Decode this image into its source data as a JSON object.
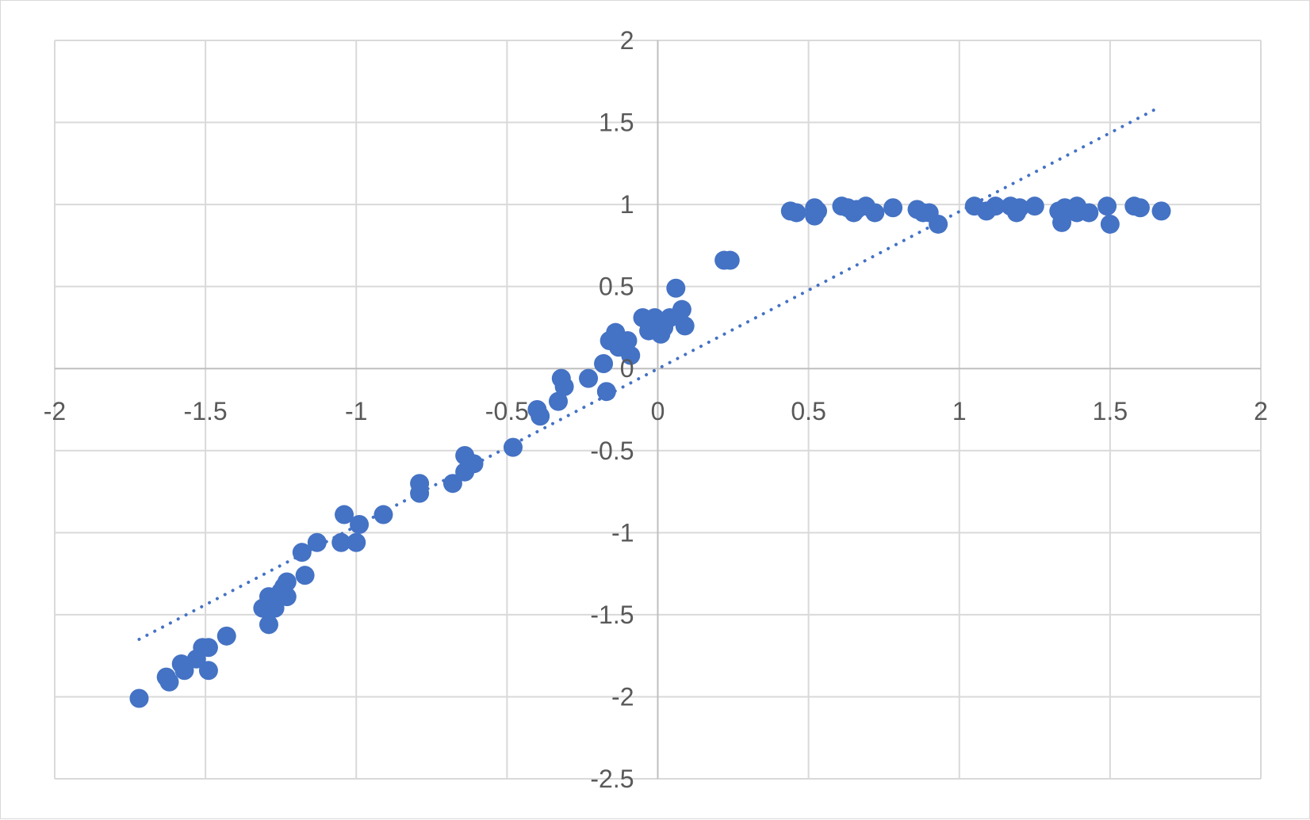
{
  "chart_data": {
    "type": "scatter",
    "title": "",
    "xlabel": "",
    "ylabel": "",
    "xlim": [
      -2,
      2
    ],
    "ylim": [
      -2.5,
      2
    ],
    "x_ticks": [
      -2,
      -1.5,
      -1,
      -0.5,
      0,
      0.5,
      1,
      1.5,
      2
    ],
    "y_ticks": [
      -2.5,
      -2,
      -1.5,
      -1,
      -0.5,
      0,
      0.5,
      1,
      1.5,
      2
    ],
    "x_tick_labels": [
      "-2",
      "-1.5",
      "-1",
      "-0.5",
      "0",
      "0.5",
      "1",
      "1.5",
      "2"
    ],
    "y_tick_labels": [
      "-2.5",
      "-2",
      "-1.5",
      "-1",
      "-0.5",
      "0",
      "0.5",
      "1",
      "1.5",
      "2"
    ],
    "grid": true,
    "legend": "none",
    "colors": {
      "marker": "#4472C4",
      "trendline": "#4472C4",
      "grid": "#d9d9d9",
      "axis": "#bfbfbf",
      "text": "#595959"
    },
    "trendline": {
      "style": "dotted",
      "x": [
        -1.72,
        1.65
      ],
      "y": [
        -1.65,
        1.58
      ]
    },
    "series": [
      {
        "points": [
          [
            -1.72,
            -2.01
          ],
          [
            -1.63,
            -1.88
          ],
          [
            -1.62,
            -1.91
          ],
          [
            -1.58,
            -1.8
          ],
          [
            -1.57,
            -1.84
          ],
          [
            -1.53,
            -1.77
          ],
          [
            -1.51,
            -1.7
          ],
          [
            -1.49,
            -1.7
          ],
          [
            -1.49,
            -1.84
          ],
          [
            -1.43,
            -1.63
          ],
          [
            -1.31,
            -1.46
          ],
          [
            -1.29,
            -1.39
          ],
          [
            -1.29,
            -1.56
          ],
          [
            -1.28,
            -1.43
          ],
          [
            -1.27,
            -1.46
          ],
          [
            -1.25,
            -1.36
          ],
          [
            -1.24,
            -1.33
          ],
          [
            -1.23,
            -1.3
          ],
          [
            -1.23,
            -1.39
          ],
          [
            -1.17,
            -1.26
          ],
          [
            -1.18,
            -1.12
          ],
          [
            -1.13,
            -1.06
          ],
          [
            -1.05,
            -1.06
          ],
          [
            -1.04,
            -0.89
          ],
          [
            -1.0,
            -1.06
          ],
          [
            -0.99,
            -0.95
          ],
          [
            -0.91,
            -0.89
          ],
          [
            -0.79,
            -0.7
          ],
          [
            -0.79,
            -0.76
          ],
          [
            -0.68,
            -0.7
          ],
          [
            -0.64,
            -0.53
          ],
          [
            -0.64,
            -0.63
          ],
          [
            -0.61,
            -0.58
          ],
          [
            -0.48,
            -0.48
          ],
          [
            -0.4,
            -0.25
          ],
          [
            -0.39,
            -0.29
          ],
          [
            -0.33,
            -0.2
          ],
          [
            -0.32,
            -0.06
          ],
          [
            -0.31,
            -0.11
          ],
          [
            -0.23,
            -0.06
          ],
          [
            -0.18,
            0.03
          ],
          [
            -0.17,
            -0.14
          ],
          [
            -0.16,
            0.17
          ],
          [
            -0.14,
            0.22
          ],
          [
            -0.13,
            0.13
          ],
          [
            -0.11,
            0.13
          ],
          [
            -0.1,
            0.17
          ],
          [
            -0.09,
            0.08
          ],
          [
            -0.05,
            0.31
          ],
          [
            -0.03,
            0.23
          ],
          [
            -0.01,
            0.31
          ],
          [
            0.0,
            0.28
          ],
          [
            0.01,
            0.21
          ],
          [
            0.02,
            0.25
          ],
          [
            0.04,
            0.31
          ],
          [
            0.06,
            0.49
          ],
          [
            0.08,
            0.36
          ],
          [
            0.09,
            0.26
          ],
          [
            0.22,
            0.66
          ],
          [
            0.24,
            0.66
          ],
          [
            0.44,
            0.96
          ],
          [
            0.46,
            0.95
          ],
          [
            0.52,
            0.93
          ],
          [
            0.52,
            0.98
          ],
          [
            0.53,
            0.96
          ],
          [
            0.61,
            0.99
          ],
          [
            0.63,
            0.98
          ],
          [
            0.65,
            0.95
          ],
          [
            0.66,
            0.97
          ],
          [
            0.69,
            0.99
          ],
          [
            0.72,
            0.95
          ],
          [
            0.78,
            0.98
          ],
          [
            0.86,
            0.97
          ],
          [
            0.88,
            0.95
          ],
          [
            0.9,
            0.95
          ],
          [
            0.93,
            0.88
          ],
          [
            1.05,
            0.99
          ],
          [
            1.09,
            0.96
          ],
          [
            1.12,
            0.99
          ],
          [
            1.17,
            0.99
          ],
          [
            1.19,
            0.95
          ],
          [
            1.2,
            0.98
          ],
          [
            1.25,
            0.99
          ],
          [
            1.33,
            0.96
          ],
          [
            1.34,
            0.89
          ],
          [
            1.35,
            0.98
          ],
          [
            1.39,
            0.99
          ],
          [
            1.39,
            0.95
          ],
          [
            1.43,
            0.95
          ],
          [
            1.49,
            0.99
          ],
          [
            1.5,
            0.88
          ],
          [
            1.58,
            0.99
          ],
          [
            1.6,
            0.98
          ],
          [
            1.67,
            0.96
          ]
        ]
      }
    ]
  }
}
